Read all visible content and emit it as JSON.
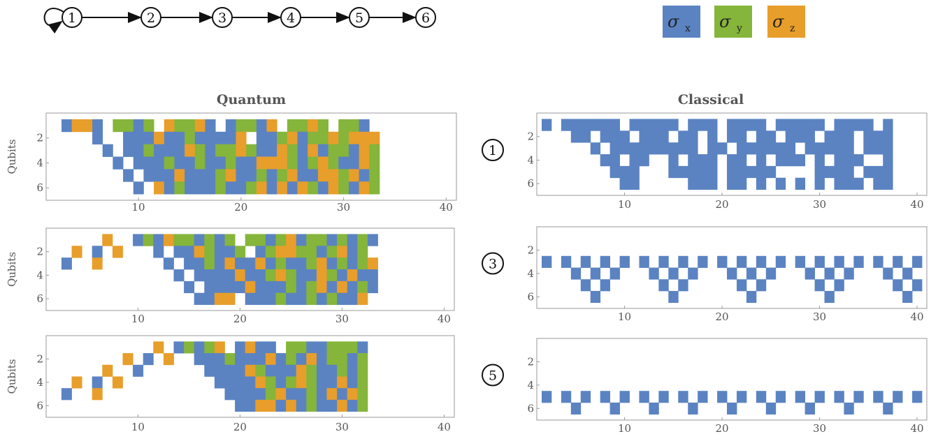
{
  "graph": {
    "nodes": [
      "1",
      "2",
      "3",
      "4",
      "5",
      "6"
    ],
    "edges": [
      [
        1,
        1
      ],
      [
        1,
        2
      ],
      [
        2,
        3
      ],
      [
        3,
        4
      ],
      [
        4,
        5
      ],
      [
        5,
        6
      ]
    ]
  },
  "legend": [
    {
      "symbol": "σ",
      "sub": "x",
      "color": "#5b83c2"
    },
    {
      "symbol": "σ",
      "sub": "y",
      "color": "#85b53a"
    },
    {
      "symbol": "σ",
      "sub": "z",
      "color": "#e89e2a"
    }
  ],
  "chart_data": [
    {
      "type": "heatmap",
      "title": "Quantum",
      "ylabel": "Qubits",
      "xticks": [
        10,
        20,
        30,
        40
      ],
      "yticks": [
        2,
        4,
        6
      ],
      "xlim": [
        1,
        41
      ],
      "ylim": [
        7,
        0
      ],
      "colors": {
        "X": "#5b83c2",
        "Y": "#85b53a",
        "Z": "#e89e2a"
      },
      "rows": [
        " XZZX YYXY ZYYZX XYYXZ YYZY YYX",
        "    X  XXXZXXYXXXXZ XXYZXYYZYZZZ",
        "     X XXYXXXZYXYYZYXXZYXZXYYXZY",
        "      X XXXYXXYXXYXXZZZYXYZYXXZY",
        "       X XXXZXXXYZXXYXYZXXZZYZXY",
        "        X ZXYXXXYXXYZXZXZYXZYXZY"
      ]
    },
    {
      "type": "heatmap",
      "title": "Quantum",
      "ylabel": "Qubits",
      "xticks": [
        10,
        20,
        30,
        40
      ],
      "yticks": [
        2,
        4,
        6
      ],
      "xlim": [
        1,
        41
      ],
      "ylim": [
        7,
        0
      ],
      "colors": {
        "X": "#5b83c2",
        "Y": "#85b53a",
        "Z": "#e89e2a"
      },
      "rows": [
        "     Z  XYXZYYXYXY YYXYZXYYXYXYX",
        "  Z X Z   X XXZYXXY XYZZYYXYZXY",
        " X  Z      X XXYXZXXZXYXXYZXYXYZ",
        "            X XXXXZXXYZYXXZYXZXX",
        "             X XXXXZXXXYXYZXZXYX",
        "              XXZZ XXXYXXYXYXXZ"
      ]
    },
    {
      "type": "heatmap",
      "title": "Quantum",
      "ylabel": "Qubits",
      "xticks": [
        10,
        20,
        30,
        40
      ],
      "yticks": [
        2,
        4,
        6
      ],
      "xlim": [
        1,
        41
      ],
      "ylim": [
        7,
        0
      ],
      "colors": {
        "X": "#5b83c2",
        "Y": "#85b53a",
        "Z": "#e89e2a"
      },
      "rows": [
        "          Z XYXYZ XZXX YYXXYYYX",
        "       Z X Z  XXXYXXXZXYXZXYYXY",
        "     Z  X      XXXXZYXXXZYXXYXY",
        "  Z X Z         XXXXZYXYZYXXZXY",
        " X  Z            XXXXYZXXYXZXZY",
        "                  XXZZXZXYXXZXY"
      ]
    },
    {
      "type": "heatmap",
      "title": "Classical",
      "marker": "1",
      "xticks": [
        10,
        20,
        30,
        40
      ],
      "yticks": [
        2,
        4,
        6
      ],
      "xlim": [
        1,
        41
      ],
      "ylim": [
        7,
        0
      ],
      "colors": {
        "X": "#5b83c2"
      },
      "rows": [
        "X XXXXXX XXXXX XXX XXXX XXXXX XXXX X",
        "   XX XXX XXX XX X XX XX XXX XXX XXX",
        "     X XXXXXXXXX XX XXXXXX XXXXX XXX",
        "      XX XX  X XXX XX X XXX X XXX  X",
        "       XXX   XXXXX XXXXX    XXXX XXX",
        "        XX     XXX XX X X X X XXX XX"
      ]
    },
    {
      "type": "heatmap",
      "title": "Classical",
      "marker": "3",
      "xticks": [
        10,
        20,
        30,
        40
      ],
      "yticks": [
        2,
        4,
        6
      ],
      "xlim": [
        1,
        41
      ],
      "ylim": [
        7,
        0
      ],
      "colors": {
        "X": "#5b83c2"
      },
      "rows": [
        "",
        "",
        "X X X X X X X X X X X X X X X X X X X X",
        "   X X X   X X X   X X X   X X X   X X",
        "    X X     X X     X X     X X     X X",
        "     X       X       X       X       X"
      ]
    },
    {
      "type": "heatmap",
      "title": "Classical",
      "marker": "5",
      "xticks": [
        10,
        20,
        30,
        40
      ],
      "yticks": [
        2,
        4,
        6
      ],
      "xlim": [
        1,
        41
      ],
      "ylim": [
        7,
        0
      ],
      "colors": {
        "X": "#5b83c2"
      },
      "rows": [
        "",
        "",
        "",
        "",
        "X X X X X X X X X X X X X X X X X X X X",
        "   X   X   X   X   X   X   X   X   X"
      ]
    }
  ]
}
